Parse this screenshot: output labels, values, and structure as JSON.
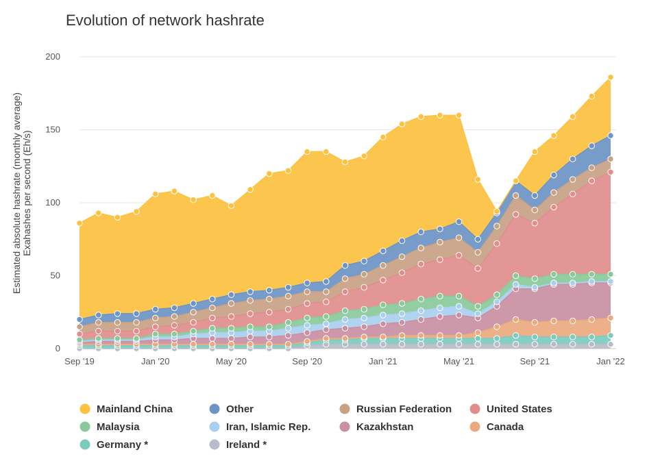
{
  "chart_data": {
    "type": "area",
    "title": "Evolution of network hashrate",
    "ylabel_lines": [
      "Estimated absolute hashrate (monthly average)",
      "Exahashes per second (Eh/s)"
    ],
    "x": [
      "Sep '19",
      "Oct '19",
      "Nov '19",
      "Dec '19",
      "Jan '20",
      "Feb '20",
      "Mar '20",
      "Apr '20",
      "May '20",
      "Jun '20",
      "Jul '20",
      "Aug '20",
      "Sep '20",
      "Oct '20",
      "Nov '20",
      "Dec '20",
      "Jan '21",
      "Feb '21",
      "Mar '21",
      "Apr '21",
      "May '21",
      "Jun '21",
      "Jul '21",
      "Aug '21",
      "Sep '21",
      "Oct '21",
      "Nov '21",
      "Dec '21",
      "Jan '22"
    ],
    "x_tick_labels": [
      "Sep '19",
      "Jan '20",
      "May '20",
      "Sep '20",
      "Jan '21",
      "May '21",
      "Sep '21",
      "Jan '22"
    ],
    "ylim": [
      0,
      200
    ],
    "yticks": [
      0,
      50,
      100,
      150,
      200
    ],
    "grid": true,
    "legend_position": "bottom",
    "stacked": true,
    "series": [
      {
        "name": "Ireland *",
        "color": "#b7bcc8",
        "values": [
          0,
          0,
          0,
          0,
          0,
          0,
          0,
          0,
          0,
          0,
          0,
          0,
          2,
          3,
          3,
          3,
          3,
          3,
          3,
          3,
          3,
          3,
          3,
          3,
          3,
          3,
          3,
          3,
          3
        ]
      },
      {
        "name": "Germany *",
        "color": "#7ccbbf",
        "values": [
          2,
          2,
          2,
          2,
          2,
          2,
          2,
          2,
          2,
          2,
          2,
          2,
          2,
          3,
          3,
          4,
          4,
          4,
          4,
          4,
          4,
          4,
          4,
          6,
          5,
          5,
          5,
          5,
          6
        ]
      },
      {
        "name": "Canada",
        "color": "#eaaa7e",
        "values": [
          1,
          1,
          1,
          1,
          1,
          1,
          1,
          1,
          1,
          1,
          1,
          1,
          1,
          1,
          1,
          1,
          1,
          2,
          2,
          2,
          2,
          4,
          8,
          11,
          10,
          11,
          11,
          12,
          12
        ]
      },
      {
        "name": "Kazakhstan",
        "color": "#c98fa3",
        "values": [
          1,
          2,
          2,
          2,
          3,
          3,
          4,
          4,
          4,
          5,
          5,
          6,
          6,
          6,
          7,
          7,
          9,
          9,
          11,
          13,
          14,
          10,
          14,
          21,
          23,
          25,
          25,
          25,
          24
        ]
      },
      {
        "name": "Iran, Islamic Rep.",
        "color": "#a9d0ef",
        "values": [
          1,
          1,
          1,
          1,
          2,
          2,
          3,
          4,
          4,
          4,
          4,
          5,
          5,
          4,
          6,
          6,
          6,
          6,
          6,
          6,
          6,
          3,
          3,
          3,
          1,
          1,
          1,
          1,
          1
        ]
      },
      {
        "name": "Malaysia",
        "color": "#8ac99a",
        "values": [
          1,
          1,
          1,
          1,
          2,
          2,
          2,
          3,
          3,
          3,
          3,
          4,
          5,
          5,
          6,
          6,
          7,
          7,
          8,
          8,
          7,
          5,
          5,
          6,
          6,
          6,
          6,
          5,
          5
        ]
      },
      {
        "name": "United States",
        "color": "#e08d8c",
        "values": [
          4,
          5,
          5,
          5,
          5,
          6,
          6,
          7,
          8,
          9,
          10,
          9,
          10,
          10,
          13,
          15,
          17,
          21,
          24,
          25,
          28,
          26,
          35,
          42,
          38,
          46,
          55,
          64,
          70
        ]
      },
      {
        "name": "Russian Federation",
        "color": "#c8a284",
        "values": [
          5,
          6,
          6,
          6,
          6,
          6,
          7,
          7,
          9,
          9,
          9,
          9,
          8,
          7,
          9,
          9,
          10,
          11,
          11,
          12,
          12,
          11,
          12,
          13,
          9,
          10,
          10,
          9,
          9
        ]
      },
      {
        "name": "Other",
        "color": "#6d94c5",
        "values": [
          5,
          5,
          6,
          6,
          6,
          6,
          6,
          6,
          6,
          6,
          6,
          6,
          6,
          7,
          9,
          9,
          10,
          11,
          11,
          9,
          11,
          9,
          9,
          10,
          10,
          12,
          14,
          15,
          16
        ]
      },
      {
        "name": "Mainland China",
        "color": "#fcc13f",
        "values": [
          66,
          70,
          66,
          70,
          79,
          80,
          71,
          71,
          61,
          70,
          80,
          80,
          90,
          89,
          71,
          72,
          78,
          80,
          79,
          78,
          73,
          41,
          1,
          0,
          30,
          27,
          29,
          34,
          40
        ]
      }
    ],
    "legend_order": [
      "Mainland China",
      "Other",
      "Russian Federation",
      "United States",
      "Malaysia",
      "Iran, Islamic Rep.",
      "Kazakhstan",
      "Canada",
      "Germany *",
      "Ireland *"
    ]
  }
}
